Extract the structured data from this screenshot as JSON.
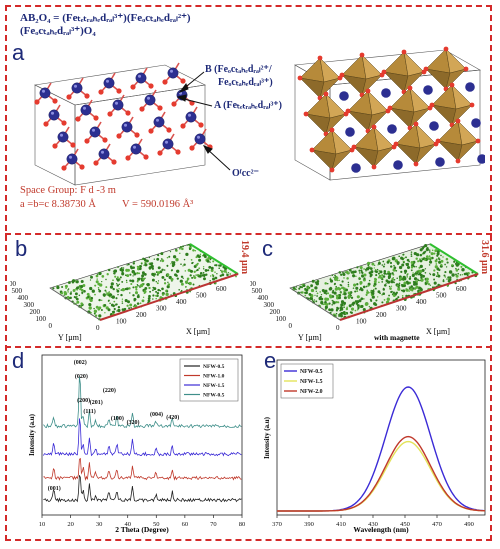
{
  "structure": {
    "formula_line1": "AB₂O₄ = (Feₜₑₜᵣₐₕₑdᵣₐₗ³⁺)(Feₒcₜₐₕₑdᵣₐₗ²⁺)",
    "formula_line2": "(Feₒcₜₐₕₑdᵣₐₗ³⁺)O₄",
    "panel_label": "a",
    "site_B_line1": "B (Feₒcₜₐₕₑdᵣₐₗ²⁺/",
    "site_B_line2": "Feₒcₜₐₕₑdᵣₐₗ³⁺)",
    "site_A": "A (Feₜₑₜᵣₐₕₑdᵣₐₗ³⁺)",
    "site_O": "Oᶠcc²⁻",
    "space_group": "Space Group: F d -3 m",
    "lattice": "a =b=c  8.38730 Å",
    "volume": "V = 590.0196 Å³"
  },
  "surface": {
    "panel_b": {
      "label": "b",
      "z_label": "19.4 µm",
      "y_axis": "Y [µm]",
      "x_axis": "X [µm]",
      "y_ticks": [
        "600",
        "500",
        "400",
        "300",
        "200",
        "100",
        "0"
      ],
      "x_ticks": [
        "0",
        "100",
        "200",
        "300",
        "400",
        "500",
        "600"
      ]
    },
    "panel_c": {
      "label": "c",
      "z_label": "31.6 µm",
      "y_axis": "Y [µm]",
      "x_axis": "X [µm]",
      "caption": "with magnette",
      "y_ticks": [
        "600",
        "500",
        "400",
        "300",
        "200",
        "100",
        "0"
      ],
      "x_ticks": [
        "0",
        "100",
        "200",
        "300",
        "400",
        "500",
        "600"
      ]
    }
  },
  "chart_data": [
    {
      "type": "line",
      "panel_label": "d",
      "xlabel": "2 Theta (Degree)",
      "ylabel": "Intensity (a.u)",
      "xlim": [
        10,
        80
      ],
      "x_ticks": [
        10,
        20,
        30,
        40,
        50,
        60,
        70,
        80
      ],
      "legend": [
        "NFW-0.5",
        "NFW-1.0",
        "NFW-1.5",
        "NFW-0.5"
      ],
      "legend_colors": [
        "#222222",
        "#c0392b",
        "#3b2bd6",
        "#3f8f8a"
      ],
      "peaks": [
        {
          "label": "(002)",
          "two_theta": 23.2
        },
        {
          "label": "(020)",
          "two_theta": 23.6
        },
        {
          "label": "(200)",
          "two_theta": 24.4
        },
        {
          "label": "(111)",
          "two_theta": 26.6
        },
        {
          "label": "(201)",
          "two_theta": 28.8
        },
        {
          "label": "(220)",
          "two_theta": 33.4
        },
        {
          "label": "(100)",
          "two_theta": 36.2
        },
        {
          "label": "(320)",
          "two_theta": 41.7
        },
        {
          "label": "(004)",
          "two_theta": 49.9
        },
        {
          "label": "(420)",
          "two_theta": 55.6
        },
        {
          "label": "(001)",
          "two_theta": 14.1
        }
      ]
    },
    {
      "type": "line",
      "panel_label": "e",
      "xlabel": "Wavelength (nm)",
      "ylabel": "Intensity (a.u)",
      "xlim": [
        370,
        500
      ],
      "x_ticks": [
        370,
        390,
        410,
        430,
        450,
        470,
        490
      ],
      "legend": [
        "NFW-0.5",
        "NFW-1.5",
        "NFW-2.0"
      ],
      "legend_colors": [
        "#3b2bd6",
        "#e3e35a",
        "#c0392b"
      ],
      "peak_wavelength": 452,
      "series": [
        {
          "name": "NFW-0.5",
          "peak": 1.0
        },
        {
          "name": "NFW-1.5",
          "peak": 0.56
        },
        {
          "name": "NFW-2.0",
          "peak": 0.6
        }
      ]
    }
  ]
}
